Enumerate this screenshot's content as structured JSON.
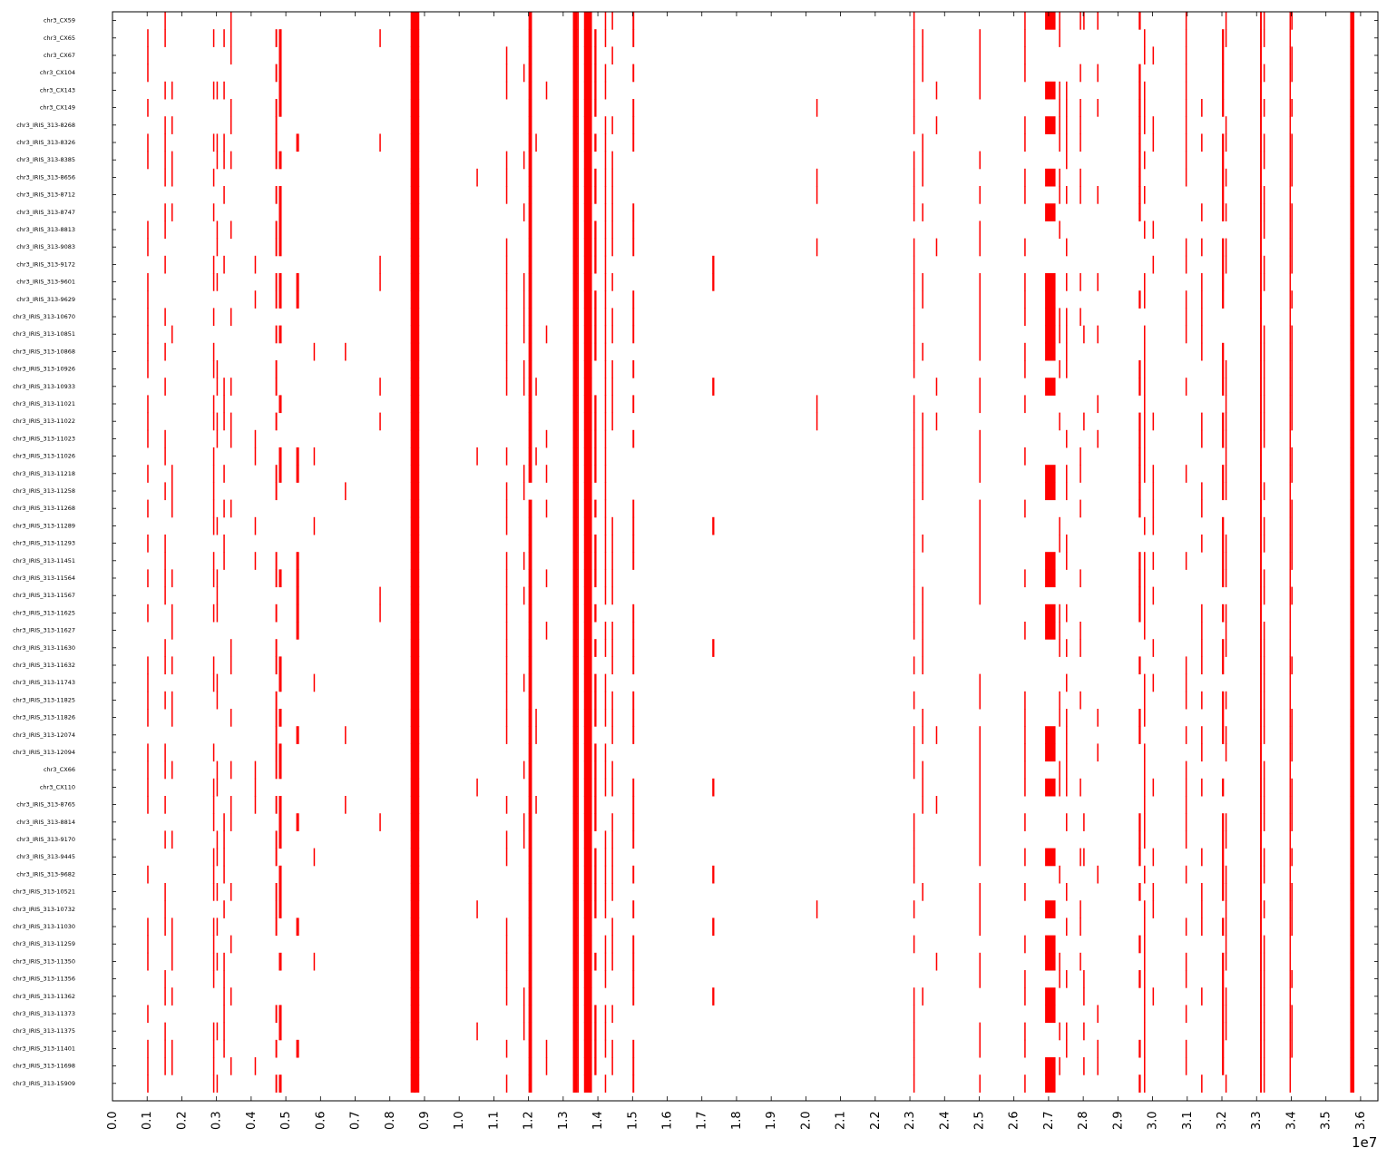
{
  "chart_data": {
    "type": "heatmap",
    "description_type": "genome-position presence map (red marks per sample row)",
    "color": "#ff0000",
    "background": "#ffffff",
    "x_offset_label": "1e7",
    "xlim": [
      0,
      36500000
    ],
    "x_ticks": [
      "0.0",
      "0.1",
      "0.2",
      "0.3",
      "0.4",
      "0.5",
      "0.6",
      "0.7",
      "0.8",
      "0.9",
      "1.0",
      "1.1",
      "1.2",
      "1.3",
      "1.4",
      "1.5",
      "1.6",
      "1.7",
      "1.8",
      "1.9",
      "2.0",
      "2.1",
      "2.2",
      "2.3",
      "2.4",
      "2.5",
      "2.6",
      "2.7",
      "2.8",
      "2.9",
      "3.0",
      "3.1",
      "3.2",
      "3.3",
      "3.4",
      "3.5",
      "3.6"
    ],
    "rows": [
      "chr3_CX59",
      "chr3_CX65",
      "chr3_CX67",
      "chr3_CX104",
      "chr3_CX143",
      "chr3_CX149",
      "chr3_IRIS_313-8268",
      "chr3_IRIS_313-8326",
      "chr3_IRIS_313-8385",
      "chr3_IRIS_313-8656",
      "chr3_IRIS_313-8712",
      "chr3_IRIS_313-8747",
      "chr3_IRIS_313-8813",
      "chr3_IRIS_313-9083",
      "chr3_IRIS_313-9172",
      "chr3_IRIS_313-9601",
      "chr3_IRIS_313-9629",
      "chr3_IRIS_313-10670",
      "chr3_IRIS_313-10851",
      "chr3_IRIS_313-10868",
      "chr3_IRIS_313-10926",
      "chr3_IRIS_313-10933",
      "chr3_IRIS_313-11021",
      "chr3_IRIS_313-11022",
      "chr3_IRIS_313-11023",
      "chr3_IRIS_313-11026",
      "chr3_IRIS_313-11218",
      "chr3_IRIS_313-11258",
      "chr3_IRIS_313-11268",
      "chr3_IRIS_313-11289",
      "chr3_IRIS_313-11293",
      "chr3_IRIS_313-11451",
      "chr3_IRIS_313-11564",
      "chr3_IRIS_313-11567",
      "chr3_IRIS_313-11625",
      "chr3_IRIS_313-11627",
      "chr3_IRIS_313-11630",
      "chr3_IRIS_313-11632",
      "chr3_IRIS_313-11743",
      "chr3_IRIS_313-11825",
      "chr3_IRIS_313-11826",
      "chr3_IRIS_313-12074",
      "chr3_IRIS_313-12094",
      "chr3_CX66",
      "chr3_CX110",
      "chr3_IRIS_313-8765",
      "chr3_IRIS_313-8814",
      "chr3_IRIS_313-9170",
      "chr3_IRIS_313-9445",
      "chr3_IRIS_313-9682",
      "chr3_IRIS_313-10521",
      "chr3_IRIS_313-10732",
      "chr3_IRIS_313-11030",
      "chr3_IRIS_313-11259",
      "chr3_IRIS_313-11350",
      "chr3_IRIS_313-11356",
      "chr3_IRIS_313-11362",
      "chr3_IRIS_313-11373",
      "chr3_IRIS_313-11375",
      "chr3_IRIS_313-11401",
      "chr3_IRIS_313-11698",
      "chr3_IRIS_313-15909"
    ],
    "always_columns": [
      {
        "x": 8600000,
        "w": 250000
      },
      {
        "x": 13280000,
        "w": 120000
      },
      {
        "x": 13400000,
        "w": 50000
      },
      {
        "x": 13600000,
        "w": 230000
      },
      {
        "x": 33100000,
        "w": 50000
      },
      {
        "x": 33950000,
        "w": 40000
      },
      {
        "x": 35700000,
        "w": 120000
      }
    ],
    "frequent_columns": [
      {
        "x": 1000000,
        "w": 40000,
        "p": 0.6
      },
      {
        "x": 1500000,
        "w": 40000,
        "p": 0.5
      },
      {
        "x": 1700000,
        "w": 40000,
        "p": 0.4
      },
      {
        "x": 2900000,
        "w": 40000,
        "p": 0.6
      },
      {
        "x": 3000000,
        "w": 40000,
        "p": 0.5
      },
      {
        "x": 3200000,
        "w": 40000,
        "p": 0.4
      },
      {
        "x": 3400000,
        "w": 40000,
        "p": 0.5
      },
      {
        "x": 4700000,
        "w": 50000,
        "p": 0.5
      },
      {
        "x": 4800000,
        "w": 80000,
        "p": 0.6
      },
      {
        "x": 11350000,
        "w": 40000,
        "p": 0.6
      },
      {
        "x": 11850000,
        "w": 40000,
        "p": 0.3
      },
      {
        "x": 12000000,
        "w": 100000,
        "p": 0.95
      },
      {
        "x": 13900000,
        "w": 60000,
        "p": 0.7
      },
      {
        "x": 14200000,
        "w": 40000,
        "p": 0.8
      },
      {
        "x": 14400000,
        "w": 40000,
        "p": 0.6
      },
      {
        "x": 15000000,
        "w": 50000,
        "p": 0.7
      },
      {
        "x": 26300000,
        "w": 40000,
        "p": 0.6
      },
      {
        "x": 23100000,
        "w": 40000,
        "p": 0.8
      },
      {
        "x": 23350000,
        "w": 40000,
        "p": 0.6
      },
      {
        "x": 25000000,
        "w": 40000,
        "p": 0.7
      },
      {
        "x": 26900000,
        "w": 300000,
        "p": 0.45
      },
      {
        "x": 27300000,
        "w": 40000,
        "p": 0.5
      },
      {
        "x": 27500000,
        "w": 40000,
        "p": 0.5
      },
      {
        "x": 27900000,
        "w": 40000,
        "p": 0.4
      },
      {
        "x": 28400000,
        "w": 40000,
        "p": 0.3
      },
      {
        "x": 29600000,
        "w": 60000,
        "p": 0.6
      },
      {
        "x": 29750000,
        "w": 40000,
        "p": 0.6
      },
      {
        "x": 30000000,
        "w": 40000,
        "p": 0.3
      },
      {
        "x": 30950000,
        "w": 40000,
        "p": 0.5
      },
      {
        "x": 31400000,
        "w": 40000,
        "p": 0.4
      },
      {
        "x": 32000000,
        "w": 60000,
        "p": 0.7
      },
      {
        "x": 32100000,
        "w": 40000,
        "p": 0.6
      },
      {
        "x": 33200000,
        "w": 40000,
        "p": 0.6
      },
      {
        "x": 34000000,
        "w": 40000,
        "p": 0.6
      }
    ],
    "rare_columns": [
      {
        "x": 4100000,
        "w": 40000
      },
      {
        "x": 5300000,
        "w": 80000
      },
      {
        "x": 5800000,
        "w": 40000
      },
      {
        "x": 6700000,
        "w": 40000
      },
      {
        "x": 7700000,
        "w": 40000
      },
      {
        "x": 8700000,
        "w": 40000
      },
      {
        "x": 8800000,
        "w": 40000
      },
      {
        "x": 10500000,
        "w": 40000
      },
      {
        "x": 12200000,
        "w": 40000
      },
      {
        "x": 12500000,
        "w": 40000
      },
      {
        "x": 17300000,
        "w": 60000
      },
      {
        "x": 20300000,
        "w": 40000
      },
      {
        "x": 23750000,
        "w": 40000
      },
      {
        "x": 28000000,
        "w": 40000
      }
    ]
  }
}
